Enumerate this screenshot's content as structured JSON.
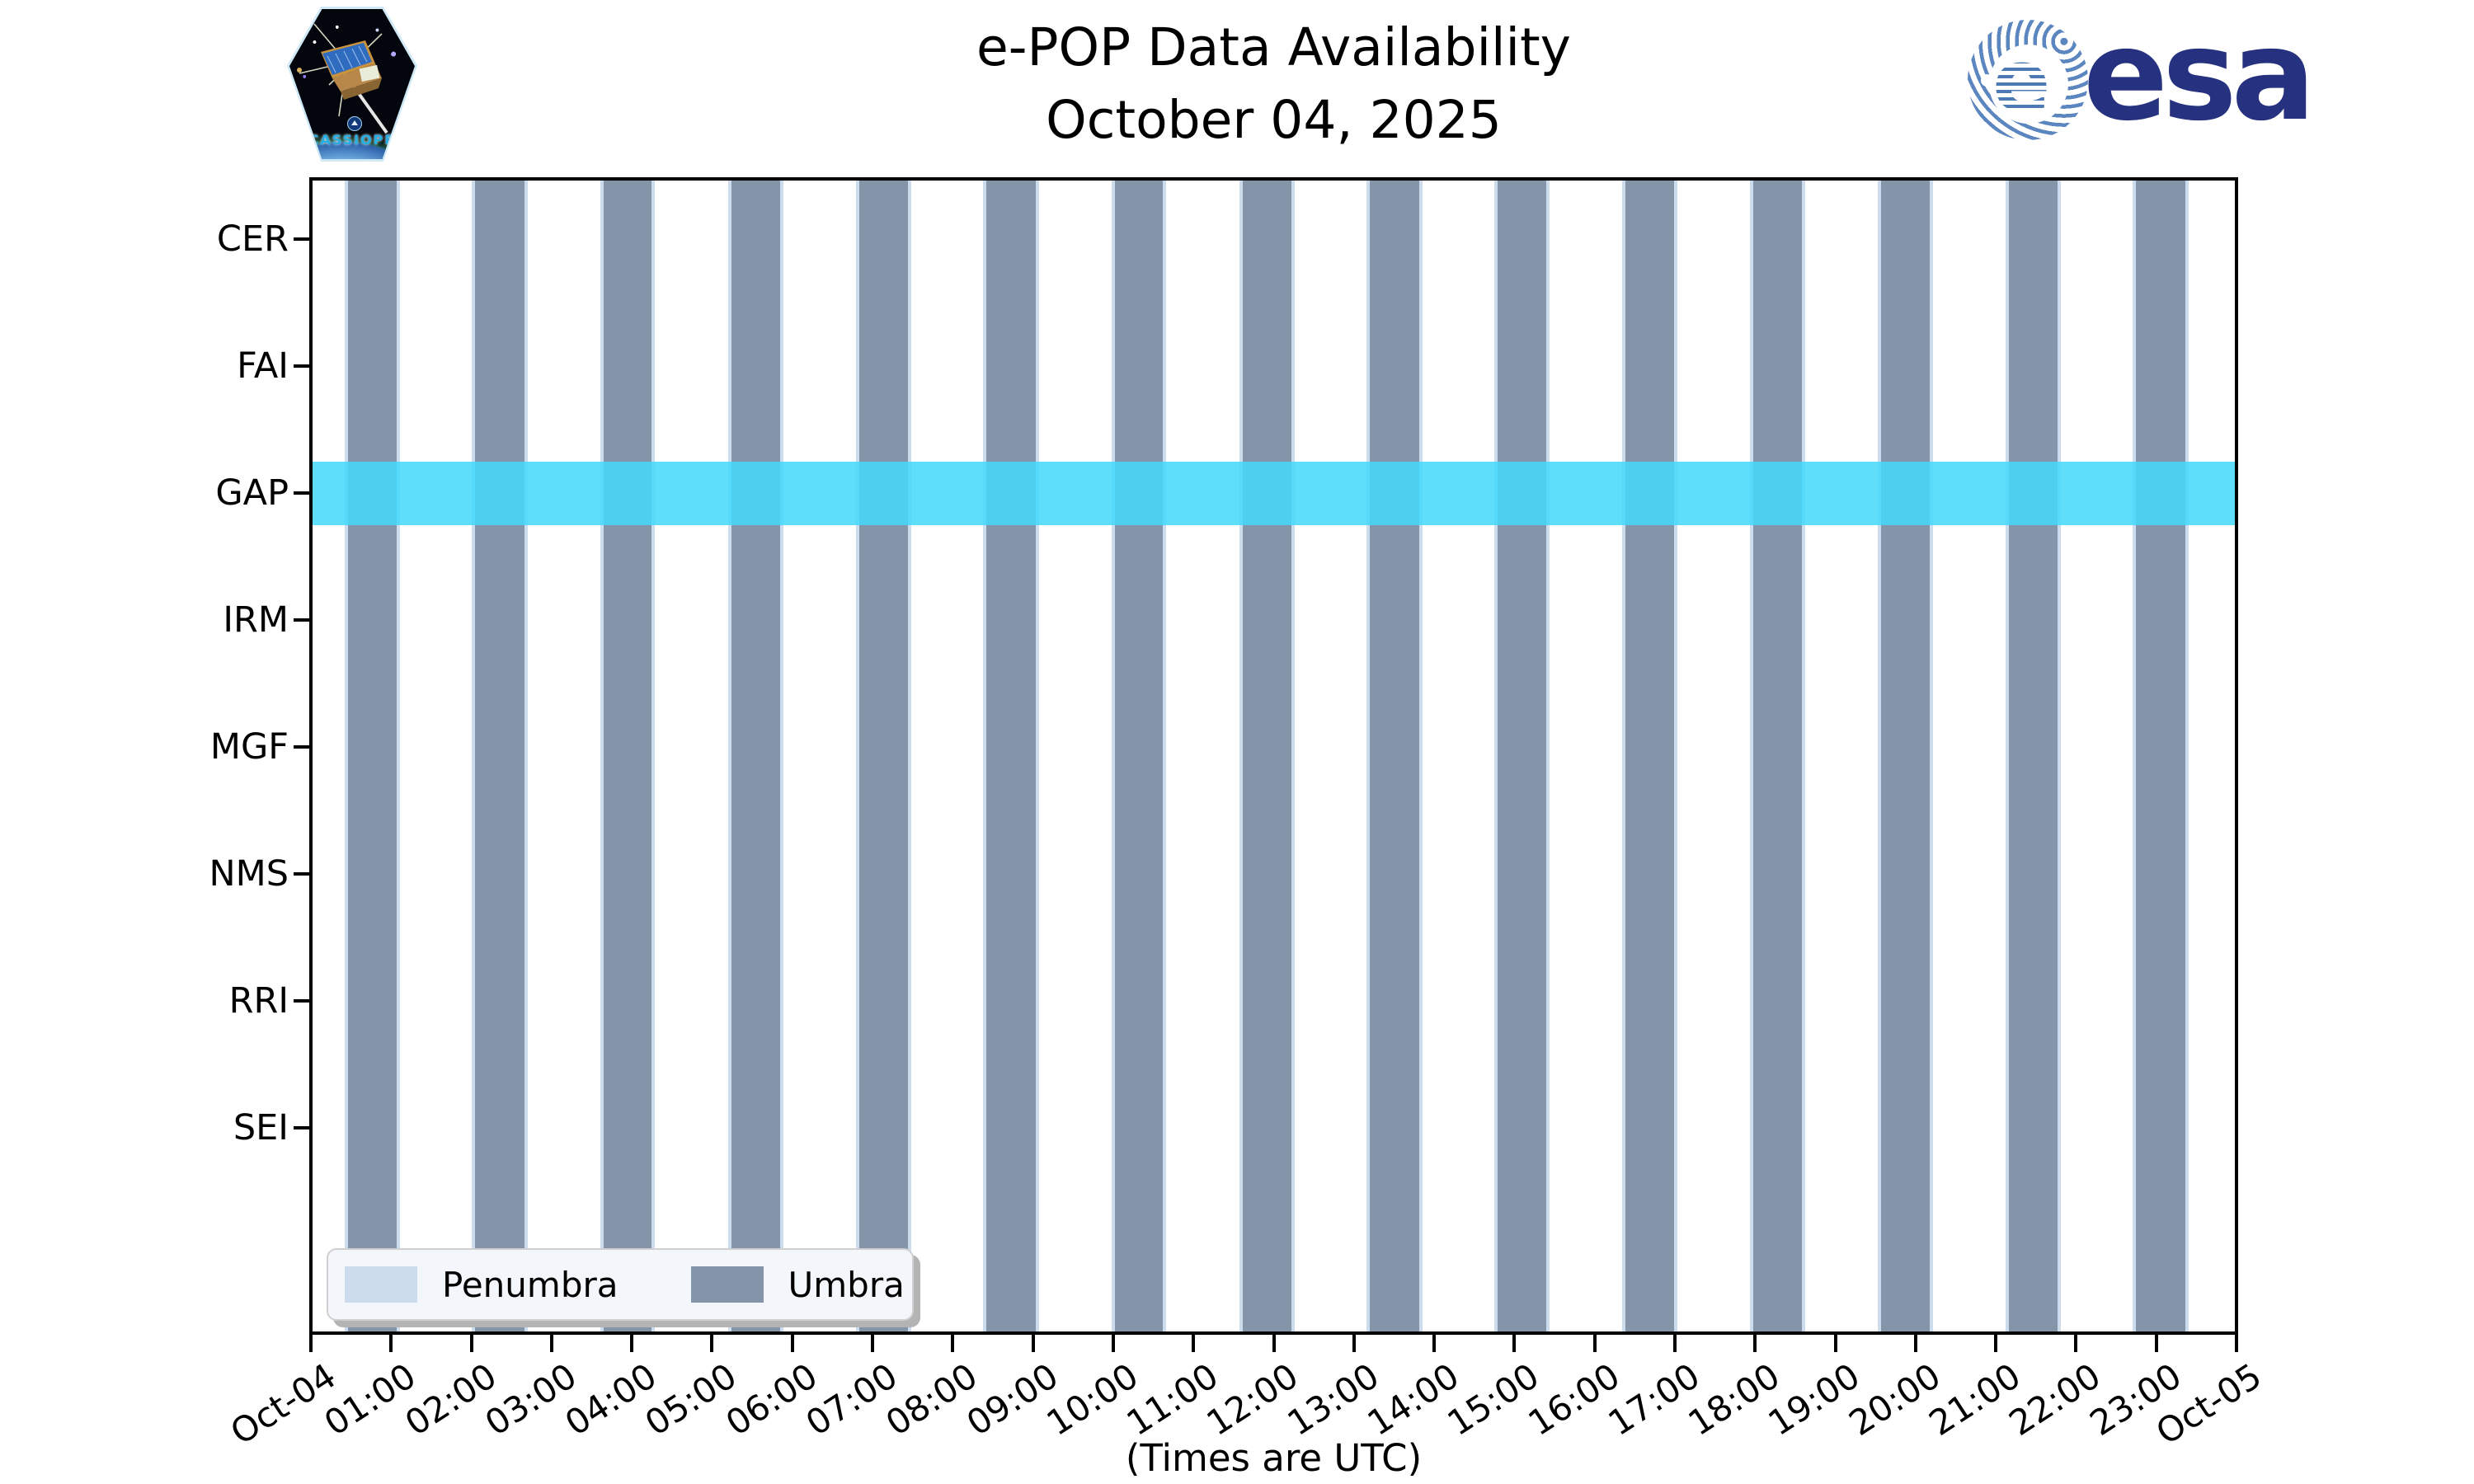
{
  "header": {
    "title_line1": "e-POP Data Availability",
    "title_line2": "October 04, 2025",
    "cassiope_patch_label": "CASSIOPE",
    "esa_wordmark": "esa",
    "esa_globe_letter": "e"
  },
  "chart": {
    "instruments": [
      "CER",
      "FAI",
      "GAP",
      "IRM",
      "MGF",
      "NMS",
      "RRI",
      "SEI"
    ],
    "x_tick_labels": [
      "Oct-04",
      "01:00",
      "02:00",
      "03:00",
      "04:00",
      "05:00",
      "06:00",
      "07:00",
      "08:00",
      "09:00",
      "10:00",
      "11:00",
      "12:00",
      "13:00",
      "14:00",
      "15:00",
      "16:00",
      "17:00",
      "18:00",
      "19:00",
      "20:00",
      "21:00",
      "22:00",
      "23:00",
      "Oct-05"
    ],
    "x_axis_note": "(Times are UTC)",
    "legend": [
      {
        "label": "Penumbra",
        "color": "#ccdcec"
      },
      {
        "label": "Umbra",
        "color": "#8495a9"
      }
    ]
  },
  "chart_data": {
    "type": "availability_timeline",
    "title": "e-POP Data Availability",
    "date": "October 04, 2025",
    "x_axis": {
      "unit": "hours UTC",
      "range": [
        0,
        24
      ],
      "tick_interval_hours": 1
    },
    "y_categories": [
      "CER",
      "FAI",
      "GAP",
      "IRM",
      "MGF",
      "NMS",
      "RRI",
      "SEI"
    ],
    "availability_intervals_hours": {
      "CER": [],
      "FAI": [],
      "GAP": [
        [
          0,
          24
        ]
      ],
      "IRM": [],
      "MGF": [],
      "NMS": [],
      "RRI": [],
      "SEI": []
    },
    "umbra_intervals_hours": [
      [
        0.46,
        1.07
      ],
      [
        2.05,
        2.66
      ],
      [
        3.65,
        4.25
      ],
      [
        5.24,
        5.85
      ],
      [
        6.83,
        7.44
      ],
      [
        8.42,
        9.03
      ],
      [
        10.02,
        10.62
      ],
      [
        11.61,
        12.22
      ],
      [
        13.2,
        13.81
      ],
      [
        14.79,
        15.4
      ],
      [
        16.38,
        16.99
      ],
      [
        17.98,
        18.58
      ],
      [
        19.57,
        20.18
      ],
      [
        21.16,
        21.77
      ],
      [
        22.75,
        23.36
      ]
    ],
    "penumbra_edge_hours": 0.04,
    "legend_position": "lower left",
    "grid": false,
    "colors": {
      "umbra": "#8495a9",
      "penumbra": "#ccdcec",
      "availability_band": "rgba(68,216,250,0.86)",
      "axes": "#000000",
      "esa_navy": "#26317f",
      "esa_globe_blue": "#5b86bf",
      "cassiope_text": "#23aee6"
    }
  }
}
